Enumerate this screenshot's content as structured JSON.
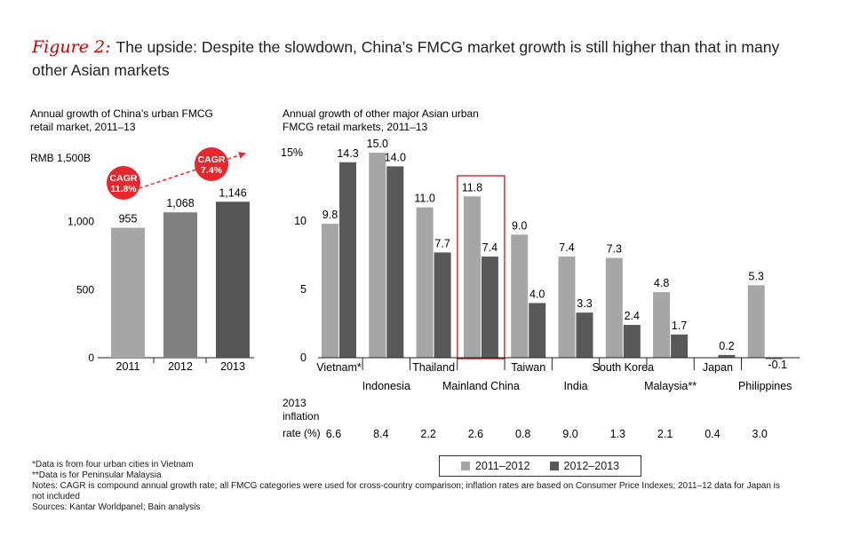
{
  "title": {
    "figure_label": "Figure 2:",
    "text": "The upside: Despite the slowdown, China’s FMCG market growth is still higher than that in many other Asian markets"
  },
  "colors": {
    "series1": "#a6a6a6",
    "series2": "#595959",
    "cagr": "#e8262d",
    "highlight": "#cc0000",
    "bar2011": "#a6a6a6",
    "bar2012": "#808080",
    "bar2013": "#555555"
  },
  "chart_data": [
    {
      "type": "bar",
      "title": "Annual growth of China’s urban FMCG retail market, 2011–13",
      "title_lines": [
        "Annual growth of China’s urban FMCG",
        "retail market, 2011–13"
      ],
      "ylabel": "RMB 1,500B",
      "ylim": [
        0,
        1500
      ],
      "yticks": [
        0,
        500,
        1000
      ],
      "ytick_labels": [
        "0",
        "500",
        "1,000"
      ],
      "categories": [
        "2011",
        "2012",
        "2013"
      ],
      "values": [
        955,
        1068,
        1146
      ],
      "value_labels": [
        "955",
        "1,068",
        "1,146"
      ],
      "annotations": [
        {
          "text_lines": [
            "CAGR",
            "11.8%"
          ]
        },
        {
          "text_lines": [
            "CAGR",
            "7.4%"
          ]
        }
      ]
    },
    {
      "type": "bar",
      "title": "Annual growth of other major Asian urban FMCG retail markets, 2011–13",
      "title_lines": [
        "Annual growth of other major Asian urban",
        "FMCG retail markets, 2011–13"
      ],
      "ylim": [
        0,
        15
      ],
      "yticks": [
        0,
        5,
        10,
        15
      ],
      "ytick_labels": [
        "0",
        "5",
        "10",
        "15%"
      ],
      "categories": [
        "Vietnam*",
        "Indonesia",
        "Thailand",
        "Mainland China",
        "Taiwan",
        "India",
        "South Korea",
        "Malaysia**",
        "Japan",
        "Philippines"
      ],
      "highlight_category": "Mainland China",
      "series": [
        {
          "name": "2011–2012",
          "values": [
            9.8,
            15.0,
            11.0,
            11.8,
            9.0,
            7.4,
            7.3,
            4.8,
            null,
            5.3
          ],
          "labels": [
            "9.8",
            "15.0",
            "11.0",
            "11.8",
            "9.0",
            "7.4",
            "7.3",
            "4.8",
            "",
            "5.3"
          ]
        },
        {
          "name": "2012–2013",
          "values": [
            14.3,
            14.0,
            7.7,
            7.4,
            4.0,
            3.3,
            2.4,
            1.7,
            0.2,
            -0.1
          ],
          "labels": [
            "14.3",
            "14.0",
            "7.7",
            "7.4",
            "4.0",
            "3.3",
            "2.4",
            "1.7",
            "0.2",
            "-0.1"
          ]
        }
      ],
      "inflation_title_lines": [
        "2013",
        "inflation",
        "rate (%)"
      ],
      "inflation_rates": [
        "6.6",
        "8.4",
        "2.2",
        "2.6",
        "0.8",
        "9.0",
        "1.3",
        "2.1",
        "0.4",
        "3.0"
      ]
    }
  ],
  "legend": {
    "items": [
      "2011–2012",
      "2012–2013"
    ]
  },
  "footnotes": [
    "*Data is from four urban cities in Vietnam",
    "**Data is for Peninsular Malaysia",
    "Notes: CAGR is compound annual growth rate; all FMCG categories were used for cross-country comparison; inflation rates are based on Consumer Price Indexes; 2011–12 data for Japan is not included",
    "Sources: Kantar Worldpanel; Bain analysis"
  ]
}
